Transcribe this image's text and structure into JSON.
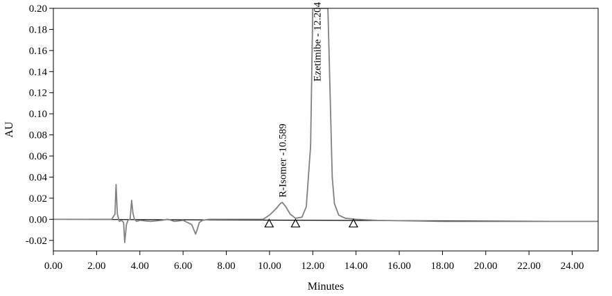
{
  "chart_data": {
    "type": "line",
    "title": "",
    "xlabel": "Minutes",
    "ylabel": "AU",
    "xlim": [
      0,
      25.2
    ],
    "ylim": [
      -0.03,
      0.2
    ],
    "x_ticks": [
      "0.00",
      "2.00",
      "4.00",
      "6.00",
      "8.00",
      "10.00",
      "12.00",
      "14.00",
      "16.00",
      "18.00",
      "20.00",
      "22.00",
      "24.00"
    ],
    "y_ticks": [
      "-0.02",
      "0.00",
      "0.02",
      "0.04",
      "0.06",
      "0.08",
      "0.10",
      "0.12",
      "0.14",
      "0.16",
      "0.18",
      "0.20"
    ],
    "grid": false,
    "line_color": "#808080",
    "baseline_color": "#000000",
    "series": [
      {
        "x": [
          0,
          1,
          2,
          2.7,
          2.85,
          2.9,
          2.96,
          3.05,
          3.15,
          3.25,
          3.3,
          3.38,
          3.45,
          3.55,
          3.62,
          3.68,
          3.75,
          3.85,
          4.0,
          4.5,
          5.0,
          5.3,
          5.6,
          6.0,
          6.4,
          6.52,
          6.58,
          6.65,
          6.75,
          6.9,
          7.2,
          8.0,
          9.0,
          9.7,
          10.0,
          10.3,
          10.5,
          10.59,
          10.75,
          10.95,
          11.2,
          11.5,
          11.7,
          11.9,
          12.0,
          12.1,
          12.2,
          12.3,
          12.4,
          12.5,
          12.6,
          12.7,
          12.8,
          12.9,
          13.0,
          13.2,
          13.5,
          14.0,
          15.0,
          18.0,
          22.0,
          25.2
        ],
        "y": [
          0.0,
          0.0,
          0.0,
          0.0,
          0.005,
          0.033,
          0.005,
          -0.002,
          -0.001,
          -0.003,
          -0.022,
          -0.005,
          -0.001,
          0.0,
          0.018,
          0.006,
          0.0,
          -0.002,
          -0.001,
          -0.002,
          -0.001,
          0.0,
          -0.002,
          -0.001,
          -0.005,
          -0.011,
          -0.014,
          -0.01,
          -0.003,
          -0.001,
          0.0,
          0.0,
          0.0,
          0.0,
          0.004,
          0.01,
          0.015,
          0.016,
          0.012,
          0.005,
          0.001,
          0.002,
          0.012,
          0.07,
          0.2,
          0.2,
          0.2,
          0.2,
          0.2,
          0.2,
          0.2,
          0.2,
          0.12,
          0.04,
          0.015,
          0.004,
          0.001,
          0.0,
          -0.001,
          -0.002,
          -0.002,
          -0.002
        ]
      }
    ],
    "baseline": {
      "x": [
        0,
        25.2
      ],
      "y": [
        0.0,
        -0.002
      ]
    },
    "integration_markers": [
      {
        "x": 9.98,
        "y": -0.004
      },
      {
        "x": 11.2,
        "y": -0.004
      },
      {
        "x": 13.88,
        "y": -0.004
      }
    ],
    "peak_labels": [
      {
        "x": 10.589,
        "y": 0.018,
        "text": "R-Isomer -10.589"
      },
      {
        "x": 12.204,
        "y": 0.128,
        "text": "Ezetimibe - 12.204"
      }
    ]
  }
}
